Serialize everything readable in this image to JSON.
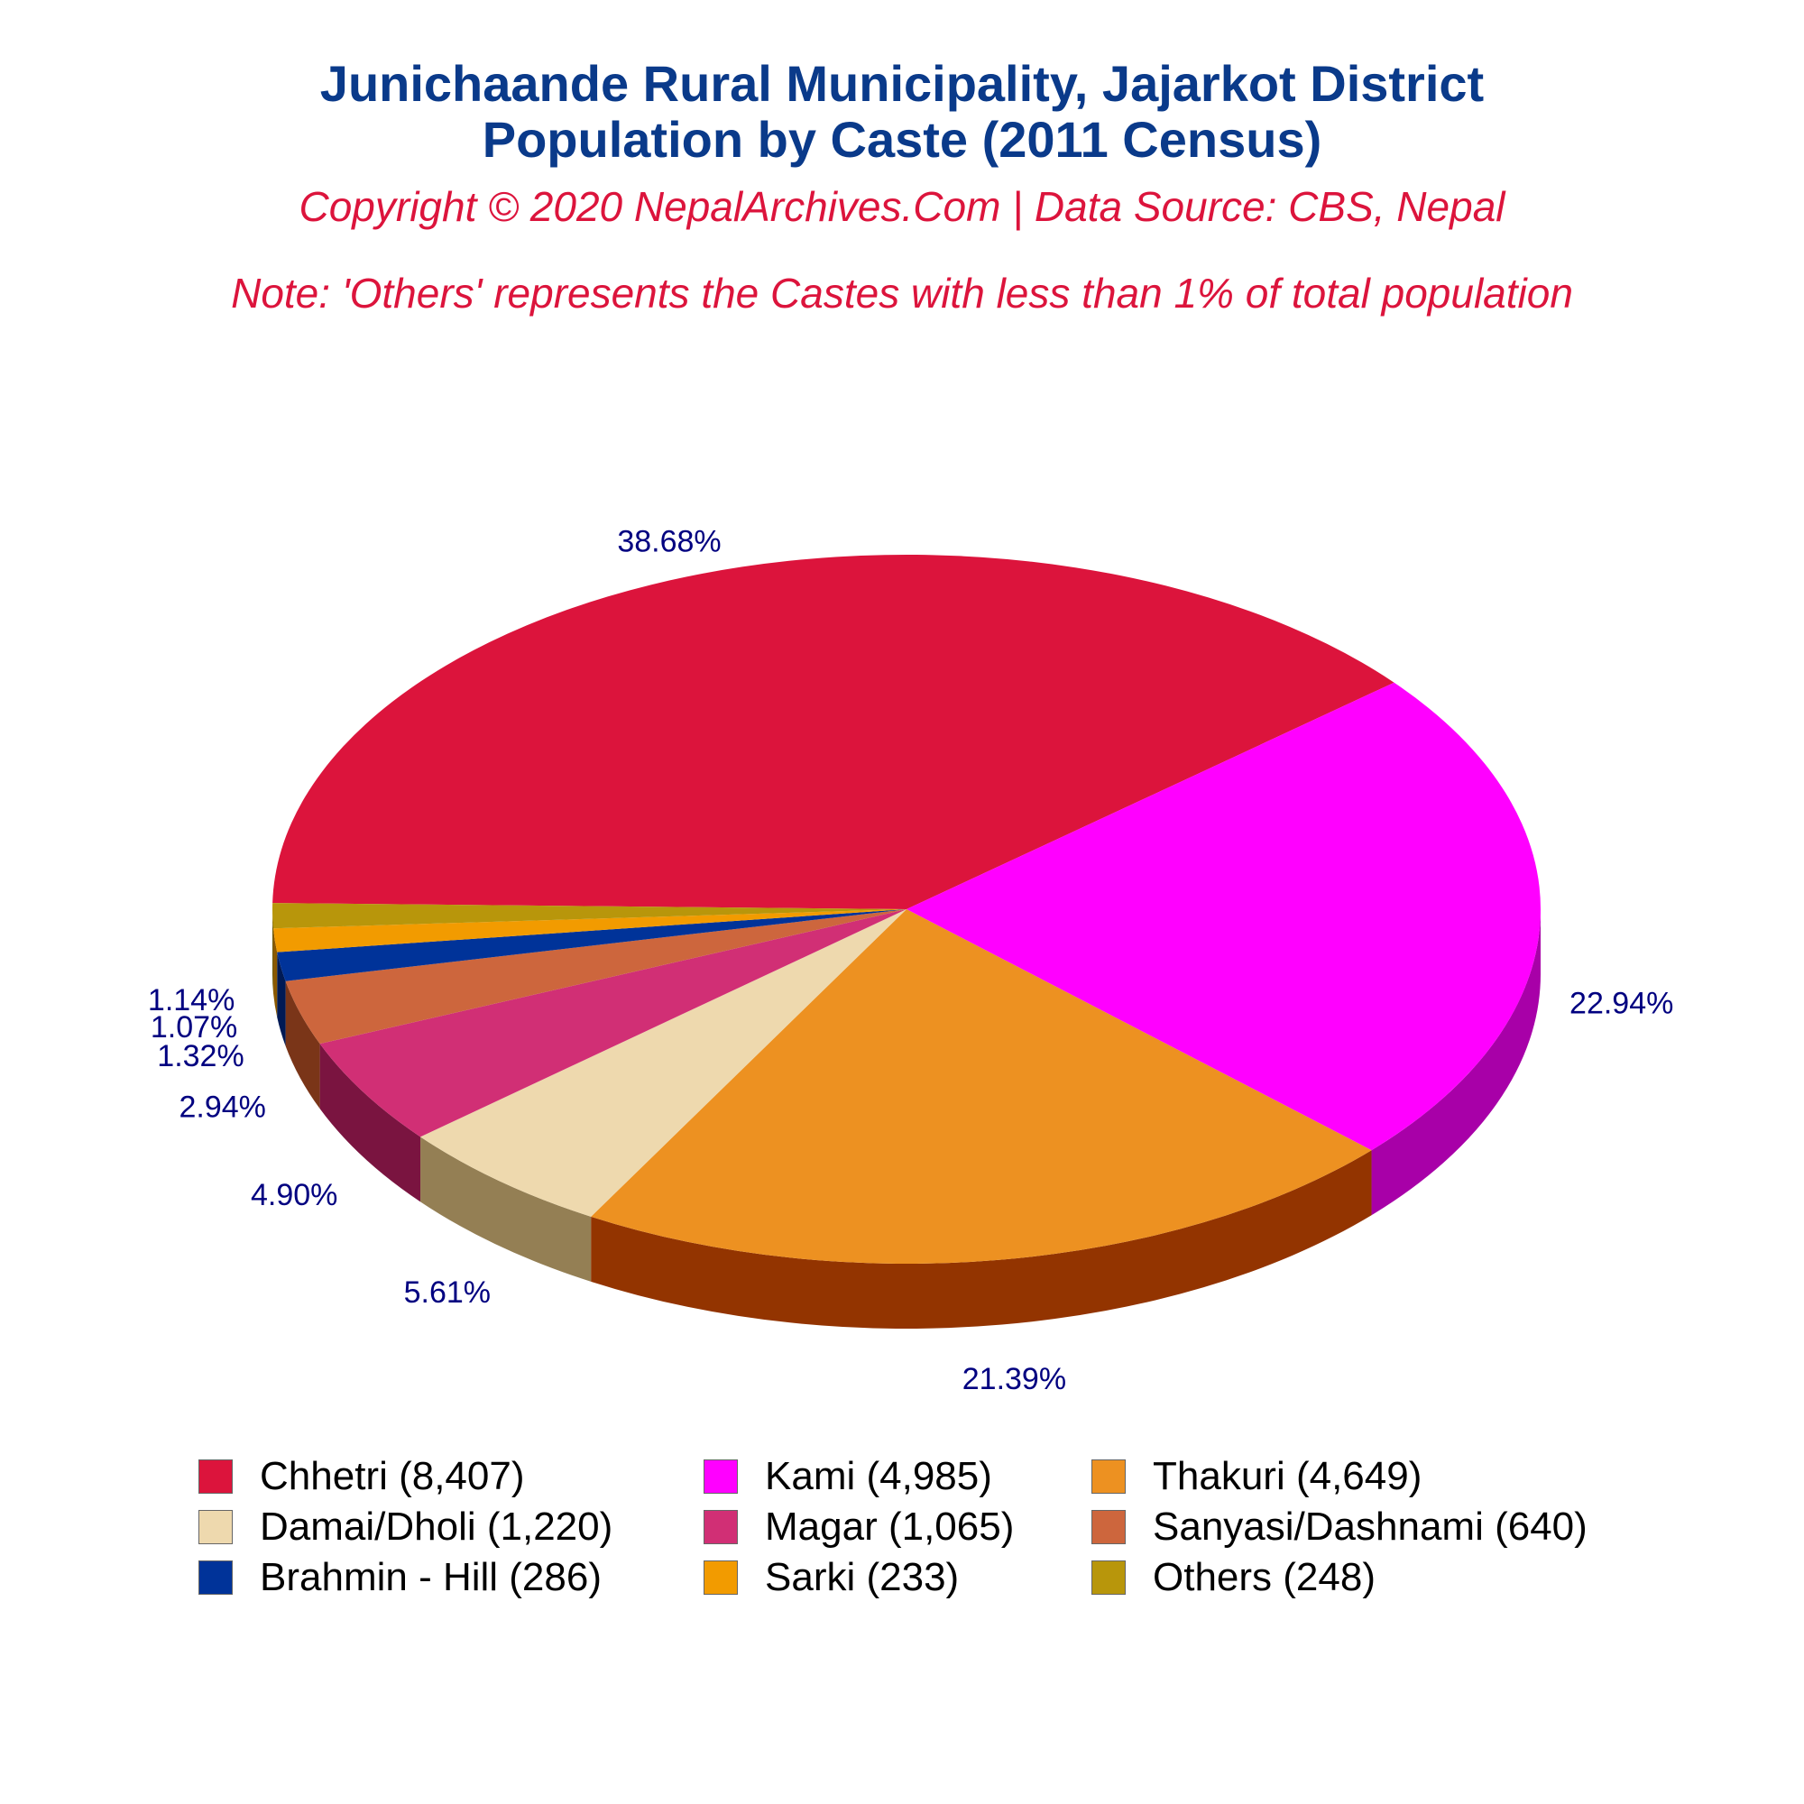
{
  "header": {
    "title_line1": "Junichaande Rural Municipality, Jajarkot District",
    "title_line2": "Population by Caste (2011 Census)",
    "copyright": "Copyright © 2020 NepalArchives.Com | Data Source: CBS, Nepal",
    "note": "Note: 'Others' represents the Castes with less than 1% of total population"
  },
  "chart_data": {
    "type": "pie",
    "title": "Junichaande Rural Municipality, Jajarkot District Population by Caste (2011 Census)",
    "slices": [
      {
        "name": "Chhetri",
        "value": 8407,
        "percent_label": "38.68%",
        "legend_label": "Chhetri (8,407)",
        "color": "#dc143c",
        "side_color": "#8b0e27"
      },
      {
        "name": "Kami",
        "value": 4985,
        "percent_label": "22.94%",
        "legend_label": "Kami (4,985)",
        "color": "#ff00ff",
        "side_color": "#a800a8"
      },
      {
        "name": "Thakuri",
        "value": 4649,
        "percent_label": "21.39%",
        "legend_label": "Thakuri (4,649)",
        "color": "#ed9121",
        "side_color": "#933400"
      },
      {
        "name": "Damai/Dholi",
        "value": 1220,
        "percent_label": "5.61%",
        "legend_label": "Damai/Dholi (1,220)",
        "color": "#eed9ae",
        "side_color": "#947f54"
      },
      {
        "name": "Magar",
        "value": 1065,
        "percent_label": "4.90%",
        "legend_label": "Magar (1,065)",
        "color": "#d12f75",
        "side_color": "#7a1440"
      },
      {
        "name": "Sanyasi/Dashnami",
        "value": 640,
        "percent_label": "2.94%",
        "legend_label": "Sanyasi/Dashnami (640)",
        "color": "#cd663d",
        "side_color": "#7a3518"
      },
      {
        "name": "Brahmin - Hill",
        "value": 286,
        "percent_label": "1.32%",
        "legend_label": "Brahmin - Hill (286)",
        "color": "#003399",
        "side_color": "#001a55"
      },
      {
        "name": "Sarki",
        "value": 233,
        "percent_label": "1.07%",
        "legend_label": "Sarki (233)",
        "color": "#f29b00",
        "side_color": "#8a5800"
      },
      {
        "name": "Others",
        "value": 248,
        "percent_label": "1.14%",
        "legend_label": "Others (248)",
        "color": "#b8960b",
        "side_color": "#6b5706"
      }
    ],
    "legend_position": "bottom",
    "label_color": "#000080"
  }
}
